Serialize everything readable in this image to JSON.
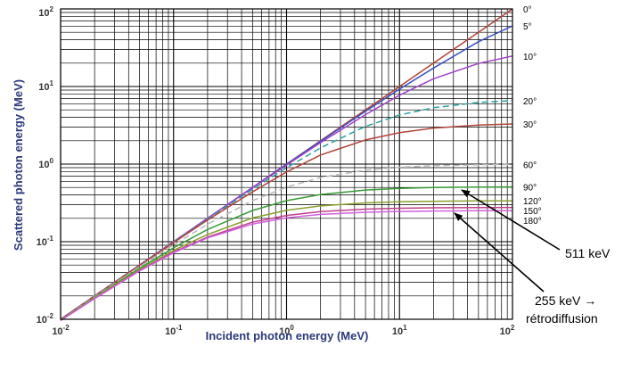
{
  "chart_data": {
    "type": "line",
    "title": "",
    "xlabel": "Incident photon energy (MeV)",
    "ylabel": "Scattered photon energy (MeV)",
    "x_scale": "log",
    "y_scale": "log",
    "xlim": [
      0.01,
      100
    ],
    "ylim": [
      0.01,
      100
    ],
    "x_ticks": [
      {
        "base": "10",
        "exp": "-2"
      },
      {
        "base": "10",
        "exp": "-1"
      },
      {
        "base": "10",
        "exp": "0"
      },
      {
        "base": "10",
        "exp": "1"
      },
      {
        "base": "10",
        "exp": "2"
      }
    ],
    "y_ticks": [
      {
        "base": "10",
        "exp": "-2"
      },
      {
        "base": "10",
        "exp": "-1"
      },
      {
        "base": "10",
        "exp": "0"
      },
      {
        "base": "10",
        "exp": "1"
      },
      {
        "base": "10",
        "exp": "2"
      }
    ],
    "grid": true,
    "x": [
      0.01,
      0.02,
      0.05,
      0.1,
      0.2,
      0.5,
      1,
      2,
      5,
      10,
      20,
      50,
      100
    ],
    "series": [
      {
        "label": "0°",
        "angle_deg": 0,
        "color": "#b0453a",
        "dashed": false,
        "values": [
          0.01,
          0.02,
          0.05,
          0.1,
          0.2,
          0.5,
          1,
          2,
          5,
          10,
          20,
          50,
          100
        ]
      },
      {
        "label": "5°",
        "angle_deg": 5,
        "color": "#3a4fc0",
        "dashed": false,
        "values": [
          0.01,
          0.02,
          0.05,
          0.1,
          0.2,
          0.5,
          0.992,
          1.97,
          4.81,
          9.27,
          17.3,
          37.8,
          60.4
        ]
      },
      {
        "label": "10°",
        "angle_deg": 10,
        "color": "#a040c8",
        "dashed": false,
        "values": [
          0.01,
          0.02,
          0.05,
          0.1,
          0.2,
          0.496,
          0.971,
          1.89,
          4.35,
          7.74,
          12.6,
          19.8,
          24.7
        ]
      },
      {
        "label": "20°",
        "angle_deg": 20,
        "color": "#2aa0a0",
        "dashed": true,
        "values": [
          0.01,
          0.02,
          0.0498,
          0.0989,
          0.196,
          0.471,
          0.896,
          1.62,
          3.06,
          4.3,
          5.33,
          6.23,
          6.58
        ]
      },
      {
        "label": "30°",
        "angle_deg": 30,
        "color": "#b0453a",
        "dashed": false,
        "values": [
          0.01,
          0.0199,
          0.0495,
          0.0975,
          0.19,
          0.438,
          0.792,
          1.31,
          2.05,
          2.54,
          2.91,
          3.19,
          3.29
        ]
      },
      {
        "label": "60°",
        "angle_deg": 60,
        "color": "#b8b8b8",
        "dashed": true,
        "values": [
          0.0099,
          0.0196,
          0.0477,
          0.091,
          0.168,
          0.338,
          0.505,
          0.672,
          0.836,
          0.911,
          0.954,
          0.981,
          0.99
        ]
      },
      {
        "label": "90°",
        "angle_deg": 90,
        "color": "#3a9a3a",
        "dashed": false,
        "values": [
          0.0098,
          0.0192,
          0.0455,
          0.0836,
          0.1437,
          0.2528,
          0.338,
          0.4056,
          0.4634,
          0.4868,
          0.4985,
          0.5059,
          0.5085
        ]
      },
      {
        "label": "120°",
        "angle_deg": 120,
        "color": "#8aa030",
        "dashed": false,
        "values": [
          0.0097,
          0.0189,
          0.0436,
          0.0773,
          0.1237,
          0.2022,
          0.2538,
          0.2892,
          0.3162,
          0.3267,
          0.3318,
          0.3349,
          0.336
        ]
      },
      {
        "label": "150°",
        "angle_deg": 150,
        "color": "#c0408a",
        "dashed": false,
        "values": [
          0.0097,
          0.0186,
          0.0424,
          0.0735,
          0.1148,
          0.1786,
          0.218,
          0.244,
          0.263,
          0.27,
          0.2734,
          0.2755,
          0.2762
        ]
      },
      {
        "label": "180°",
        "angle_deg": 180,
        "color": "#d060e0",
        "dashed": false,
        "values": [
          0.0096,
          0.0185,
          0.0419,
          0.0719,
          0.1122,
          0.1691,
          0.203,
          0.2247,
          0.2393,
          0.2455,
          0.2485,
          0.2503,
          0.2509
        ]
      }
    ],
    "annotations": [
      {
        "text": "511 keV",
        "x": 30,
        "y": 0.511
      },
      {
        "text": "255 keV →",
        "x": 30,
        "y": 0.255
      },
      {
        "text": "rétrodiffusion",
        "x": 30,
        "y": 0.255
      }
    ],
    "grid_color": "#000000"
  }
}
